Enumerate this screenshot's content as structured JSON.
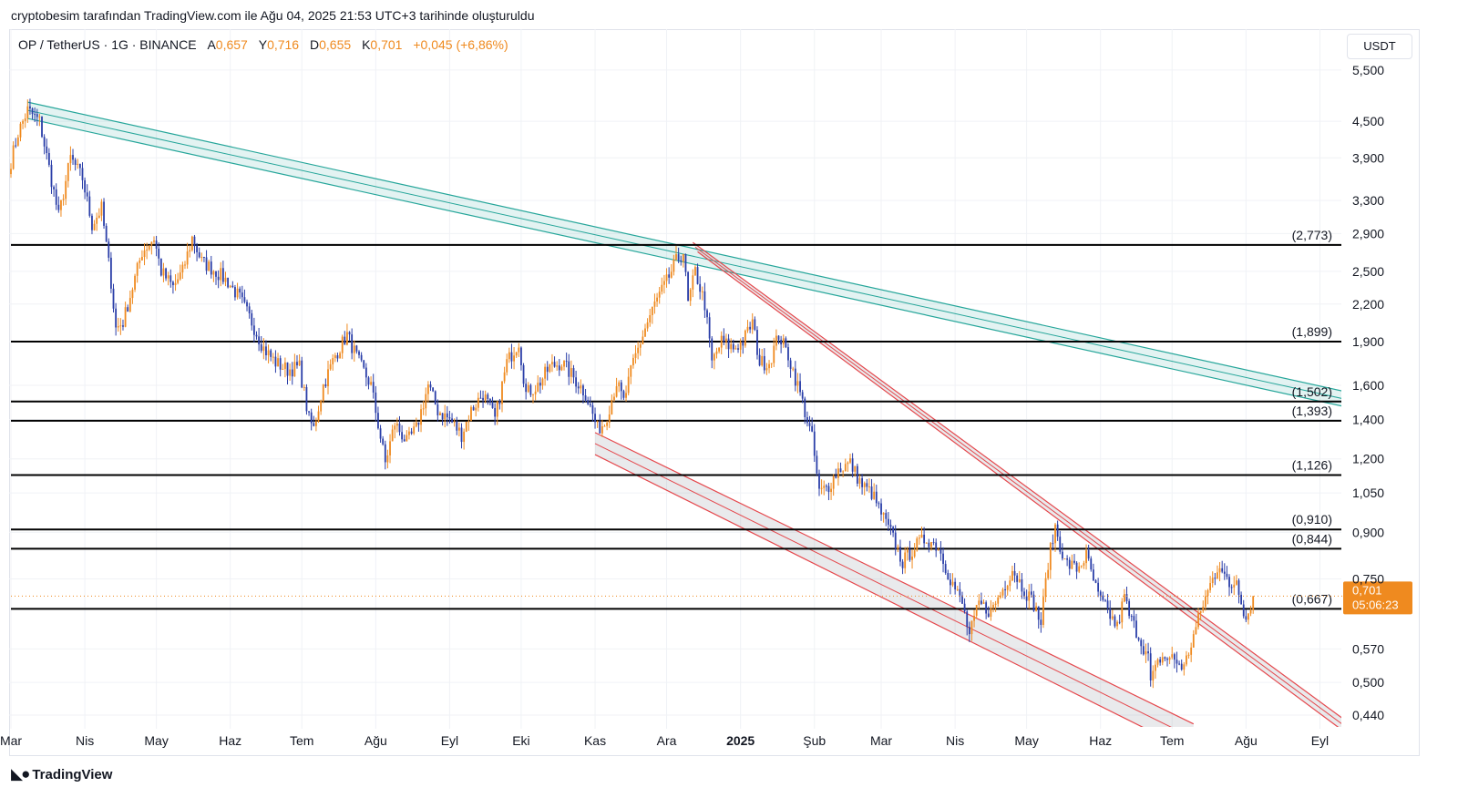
{
  "header": {
    "caption": "cryptobesim tarafından TradingView.com ile Ağu 04, 2025 21:53 UTC+3 tarihinde oluşturuldu"
  },
  "legend": {
    "symbol": "OP / TetherUS · 1G · BINANCE",
    "open_label": "A",
    "open": "0,657",
    "high_label": "Y",
    "high": "0,716",
    "low_label": "D",
    "low": "0,655",
    "close_label": "K",
    "close": "0,701",
    "change": "+0,045 (+6,86%)"
  },
  "currency_button": "USDT",
  "brand": "TradingView",
  "colors": {
    "up": "#ef8a1f",
    "down": "#2a3ea8",
    "teal_channel": "#26a69a",
    "red_channel": "#e5484d",
    "level_line": "#000000",
    "price_tag": "#ef8a1f"
  },
  "price_tag": {
    "price": "0,701",
    "countdown": "05:06:23"
  },
  "chart_data": {
    "type": "candlestick",
    "symbol": "OP / TetherUS",
    "interval": "1G",
    "y_scale": "log",
    "y_range": [
      0.42,
      5.8
    ],
    "x_range": [
      "2024-03-01",
      "2025-09-10"
    ],
    "y_ticks": [
      {
        "value": 5.5,
        "label": "5,500"
      },
      {
        "value": 4.5,
        "label": "4,500"
      },
      {
        "value": 3.9,
        "label": "3,900"
      },
      {
        "value": 3.3,
        "label": "3,300"
      },
      {
        "value": 2.9,
        "label": "2,900"
      },
      {
        "value": 2.5,
        "label": "2,500"
      },
      {
        "value": 2.2,
        "label": "2,200"
      },
      {
        "value": 1.9,
        "label": "1,900"
      },
      {
        "value": 1.6,
        "label": "1,600"
      },
      {
        "value": 1.4,
        "label": "1,400"
      },
      {
        "value": 1.2,
        "label": "1,200"
      },
      {
        "value": 1.05,
        "label": "1,050"
      },
      {
        "value": 0.9,
        "label": "0,900"
      },
      {
        "value": 0.75,
        "label": "0,750"
      },
      {
        "value": 0.57,
        "label": "0,570"
      },
      {
        "value": 0.5,
        "label": "0,500"
      },
      {
        "value": 0.44,
        "label": "0,440"
      }
    ],
    "x_ticks": [
      {
        "date": "2024-03-01",
        "label": "Mar"
      },
      {
        "date": "2024-04-01",
        "label": "Nis"
      },
      {
        "date": "2024-05-01",
        "label": "May"
      },
      {
        "date": "2024-06-01",
        "label": "Haz"
      },
      {
        "date": "2024-07-01",
        "label": "Tem"
      },
      {
        "date": "2024-08-01",
        "label": "Ağu"
      },
      {
        "date": "2024-09-01",
        "label": "Eyl"
      },
      {
        "date": "2024-10-01",
        "label": "Eki"
      },
      {
        "date": "2024-11-01",
        "label": "Kas"
      },
      {
        "date": "2024-12-01",
        "label": "Ara"
      },
      {
        "date": "2025-01-01",
        "label": "2025",
        "bold": true
      },
      {
        "date": "2025-02-01",
        "label": "Şub"
      },
      {
        "date": "2025-03-01",
        "label": "Mar"
      },
      {
        "date": "2025-04-01",
        "label": "Nis"
      },
      {
        "date": "2025-05-01",
        "label": "May"
      },
      {
        "date": "2025-06-01",
        "label": "Haz"
      },
      {
        "date": "2025-07-01",
        "label": "Tem"
      },
      {
        "date": "2025-08-01",
        "label": "Ağu"
      },
      {
        "date": "2025-09-01",
        "label": "Eyl"
      }
    ],
    "levels": [
      {
        "value": 2.773,
        "label": "(2,773)"
      },
      {
        "value": 1.899,
        "label": "(1,899)"
      },
      {
        "value": 1.502,
        "label": "(1,502)"
      },
      {
        "value": 1.393,
        "label": "(1,393)"
      },
      {
        "value": 1.126,
        "label": "(1,126)"
      },
      {
        "value": 0.91,
        "label": "(0,910)"
      },
      {
        "value": 0.844,
        "label": "(0,844)"
      },
      {
        "value": 0.667,
        "label": "(0,667)"
      }
    ],
    "current_price": 0.701,
    "channels": [
      {
        "name": "teal-descending-channel",
        "color": "teal",
        "lines": [
          {
            "start": [
              "2024-03-08",
              4.85
            ],
            "end": [
              "2025-09-12",
              1.56
            ]
          },
          {
            "start": [
              "2024-03-08",
              4.55
            ],
            "end": [
              "2025-09-12",
              1.47
            ]
          }
        ]
      },
      {
        "name": "red-descending-channel-upper",
        "color": "red",
        "lines": [
          {
            "start": [
              "2024-12-12",
              2.8
            ],
            "end": [
              "2025-09-12",
              0.43
            ]
          },
          {
            "start": [
              "2024-12-14",
              2.7
            ],
            "end": [
              "2025-09-12",
              0.41
            ]
          }
        ]
      },
      {
        "name": "red-descending-channel-lower",
        "color": "red",
        "lines": [
          {
            "start": [
              "2024-11-01",
              1.33
            ],
            "end": [
              "2025-07-10",
              0.425
            ]
          },
          {
            "start": [
              "2024-11-01",
              1.22
            ],
            "end": [
              "2025-07-10",
              0.38
            ]
          }
        ]
      }
    ],
    "close_path": [
      {
        "date": "2024-03-01",
        "close": 3.85
      },
      {
        "date": "2024-03-04",
        "close": 4.3
      },
      {
        "date": "2024-03-08",
        "close": 4.7
      },
      {
        "date": "2024-03-13",
        "close": 4.5
      },
      {
        "date": "2024-03-17",
        "close": 3.75
      },
      {
        "date": "2024-03-21",
        "close": 3.1
      },
      {
        "date": "2024-03-26",
        "close": 3.9
      },
      {
        "date": "2024-03-31",
        "close": 3.6
      },
      {
        "date": "2024-04-04",
        "close": 3.0
      },
      {
        "date": "2024-04-08",
        "close": 3.2
      },
      {
        "date": "2024-04-12",
        "close": 2.4
      },
      {
        "date": "2024-04-14",
        "close": 2.0
      },
      {
        "date": "2024-04-17",
        "close": 2.05
      },
      {
        "date": "2024-04-21",
        "close": 2.35
      },
      {
        "date": "2024-04-25",
        "close": 2.7
      },
      {
        "date": "2024-04-30",
        "close": 2.85
      },
      {
        "date": "2024-05-03",
        "close": 2.5
      },
      {
        "date": "2024-05-08",
        "close": 2.35
      },
      {
        "date": "2024-05-12",
        "close": 2.5
      },
      {
        "date": "2024-05-16",
        "close": 2.85
      },
      {
        "date": "2024-05-20",
        "close": 2.6
      },
      {
        "date": "2024-05-26",
        "close": 2.5
      },
      {
        "date": "2024-05-31",
        "close": 2.4
      },
      {
        "date": "2024-06-05",
        "close": 2.25
      },
      {
        "date": "2024-06-10",
        "close": 2.05
      },
      {
        "date": "2024-06-15",
        "close": 1.85
      },
      {
        "date": "2024-06-20",
        "close": 1.75
      },
      {
        "date": "2024-06-25",
        "close": 1.7
      },
      {
        "date": "2024-06-30",
        "close": 1.72
      },
      {
        "date": "2024-07-04",
        "close": 1.4
      },
      {
        "date": "2024-07-06",
        "close": 1.35
      },
      {
        "date": "2024-07-10",
        "close": 1.6
      },
      {
        "date": "2024-07-15",
        "close": 1.8
      },
      {
        "date": "2024-07-20",
        "close": 1.95
      },
      {
        "date": "2024-07-25",
        "close": 1.75
      },
      {
        "date": "2024-07-30",
        "close": 1.6
      },
      {
        "date": "2024-08-05",
        "close": 1.18
      },
      {
        "date": "2024-08-09",
        "close": 1.38
      },
      {
        "date": "2024-08-14",
        "close": 1.28
      },
      {
        "date": "2024-08-18",
        "close": 1.35
      },
      {
        "date": "2024-08-23",
        "close": 1.6
      },
      {
        "date": "2024-08-27",
        "close": 1.45
      },
      {
        "date": "2024-09-01",
        "close": 1.4
      },
      {
        "date": "2024-09-06",
        "close": 1.32
      },
      {
        "date": "2024-09-10",
        "close": 1.45
      },
      {
        "date": "2024-09-15",
        "close": 1.55
      },
      {
        "date": "2024-09-20",
        "close": 1.4
      },
      {
        "date": "2024-09-25",
        "close": 1.75
      },
      {
        "date": "2024-09-30",
        "close": 1.9
      },
      {
        "date": "2024-10-03",
        "close": 1.55
      },
      {
        "date": "2024-10-08",
        "close": 1.6
      },
      {
        "date": "2024-10-13",
        "close": 1.72
      },
      {
        "date": "2024-10-18",
        "close": 1.75
      },
      {
        "date": "2024-10-23",
        "close": 1.65
      },
      {
        "date": "2024-10-28",
        "close": 1.55
      },
      {
        "date": "2024-11-02",
        "close": 1.35
      },
      {
        "date": "2024-11-05",
        "close": 1.38
      },
      {
        "date": "2024-11-10",
        "close": 1.62
      },
      {
        "date": "2024-11-13",
        "close": 1.5
      },
      {
        "date": "2024-11-17",
        "close": 1.75
      },
      {
        "date": "2024-11-22",
        "close": 2.0
      },
      {
        "date": "2024-11-26",
        "close": 2.2
      },
      {
        "date": "2024-12-01",
        "close": 2.4
      },
      {
        "date": "2024-12-05",
        "close": 2.6
      },
      {
        "date": "2024-12-08",
        "close": 2.7
      },
      {
        "date": "2024-12-10",
        "close": 2.2
      },
      {
        "date": "2024-12-13",
        "close": 2.5
      },
      {
        "date": "2024-12-17",
        "close": 2.2
      },
      {
        "date": "2024-12-20",
        "close": 1.75
      },
      {
        "date": "2024-12-24",
        "close": 1.9
      },
      {
        "date": "2024-12-29",
        "close": 1.85
      },
      {
        "date": "2025-01-02",
        "close": 1.9
      },
      {
        "date": "2025-01-06",
        "close": 2.05
      },
      {
        "date": "2025-01-09",
        "close": 1.75
      },
      {
        "date": "2025-01-13",
        "close": 1.75
      },
      {
        "date": "2025-01-17",
        "close": 1.95
      },
      {
        "date": "2025-01-21",
        "close": 1.8
      },
      {
        "date": "2025-01-26",
        "close": 1.55
      },
      {
        "date": "2025-01-31",
        "close": 1.3
      },
      {
        "date": "2025-02-03",
        "close": 1.05
      },
      {
        "date": "2025-02-07",
        "close": 1.08
      },
      {
        "date": "2025-02-11",
        "close": 1.15
      },
      {
        "date": "2025-02-16",
        "close": 1.18
      },
      {
        "date": "2025-02-21",
        "close": 1.08
      },
      {
        "date": "2025-02-25",
        "close": 1.05
      },
      {
        "date": "2025-03-02",
        "close": 0.95
      },
      {
        "date": "2025-03-06",
        "close": 0.88
      },
      {
        "date": "2025-03-10",
        "close": 0.8
      },
      {
        "date": "2025-03-15",
        "close": 0.85
      },
      {
        "date": "2025-03-20",
        "close": 0.88
      },
      {
        "date": "2025-03-25",
        "close": 0.85
      },
      {
        "date": "2025-03-30",
        "close": 0.75
      },
      {
        "date": "2025-04-04",
        "close": 0.68
      },
      {
        "date": "2025-04-07",
        "close": 0.6
      },
      {
        "date": "2025-04-11",
        "close": 0.68
      },
      {
        "date": "2025-04-16",
        "close": 0.66
      },
      {
        "date": "2025-04-21",
        "close": 0.72
      },
      {
        "date": "2025-04-25",
        "close": 0.78
      },
      {
        "date": "2025-04-29",
        "close": 0.73
      },
      {
        "date": "2025-05-04",
        "close": 0.68
      },
      {
        "date": "2025-05-07",
        "close": 0.63
      },
      {
        "date": "2025-05-10",
        "close": 0.8
      },
      {
        "date": "2025-05-13",
        "close": 0.92
      },
      {
        "date": "2025-05-17",
        "close": 0.8
      },
      {
        "date": "2025-05-22",
        "close": 0.78
      },
      {
        "date": "2025-05-26",
        "close": 0.82
      },
      {
        "date": "2025-05-31",
        "close": 0.7
      },
      {
        "date": "2025-06-04",
        "close": 0.66
      },
      {
        "date": "2025-06-08",
        "close": 0.62
      },
      {
        "date": "2025-06-11",
        "close": 0.7
      },
      {
        "date": "2025-06-13",
        "close": 0.65
      },
      {
        "date": "2025-06-17",
        "close": 0.6
      },
      {
        "date": "2025-06-21",
        "close": 0.55
      },
      {
        "date": "2025-06-22",
        "close": 0.5
      },
      {
        "date": "2025-06-26",
        "close": 0.55
      },
      {
        "date": "2025-07-01",
        "close": 0.55
      },
      {
        "date": "2025-07-06",
        "close": 0.53
      },
      {
        "date": "2025-07-10",
        "close": 0.6
      },
      {
        "date": "2025-07-14",
        "close": 0.68
      },
      {
        "date": "2025-07-18",
        "close": 0.75
      },
      {
        "date": "2025-07-21",
        "close": 0.8
      },
      {
        "date": "2025-07-25",
        "close": 0.72
      },
      {
        "date": "2025-07-28",
        "close": 0.75
      },
      {
        "date": "2025-08-01",
        "close": 0.64
      },
      {
        "date": "2025-08-04",
        "close": 0.701
      }
    ]
  }
}
